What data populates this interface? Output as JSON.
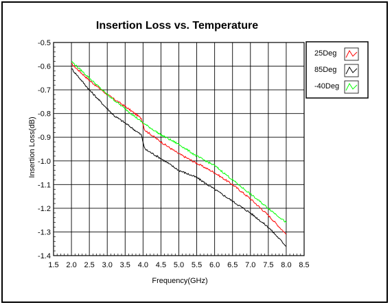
{
  "chart_data": {
    "type": "line",
    "title": "Insertion Loss vs. Temperature",
    "xlabel": "Frequency(GHz)",
    "ylabel": "Insertion Loss(dB)",
    "xlim": [
      1.5,
      8.5
    ],
    "ylim": [
      -1.4,
      -0.5
    ],
    "xticks": [
      "1.5",
      "2.0",
      "2.5",
      "3.0",
      "3.5",
      "4.0",
      "4.5",
      "5.0",
      "5.5",
      "6.0",
      "6.5",
      "7.0",
      "7.5",
      "8.0",
      "8.5"
    ],
    "yticks": [
      "-0.5",
      "-0.6",
      "-0.7",
      "-0.8",
      "-0.9",
      "-1.0",
      "-1.1",
      "-1.2",
      "-1.3",
      "-1.4"
    ],
    "grid": true,
    "legend_position": "top-right",
    "series": [
      {
        "name": "25Deg",
        "color": "#ff0000",
        "x": [
          2.0,
          2.5,
          3.0,
          3.5,
          3.95,
          4.05,
          4.5,
          5.0,
          5.5,
          6.0,
          6.5,
          7.0,
          7.5,
          8.0
        ],
        "y": [
          -0.59,
          -0.66,
          -0.72,
          -0.77,
          -0.82,
          -0.87,
          -0.92,
          -0.97,
          -1.01,
          -1.05,
          -1.1,
          -1.16,
          -1.23,
          -1.31
        ]
      },
      {
        "name": "85Deg",
        "color": "#000000",
        "x": [
          2.0,
          2.5,
          3.0,
          3.2,
          3.5,
          3.95,
          4.05,
          4.5,
          5.0,
          5.5,
          6.0,
          6.5,
          7.0,
          7.5,
          8.0
        ],
        "y": [
          -0.61,
          -0.7,
          -0.78,
          -0.81,
          -0.84,
          -0.89,
          -0.95,
          -0.99,
          -1.04,
          -1.07,
          -1.12,
          -1.17,
          -1.22,
          -1.28,
          -1.36
        ]
      },
      {
        "name": "-40Deg",
        "color": "#00ff00",
        "x": [
          2.0,
          2.5,
          3.0,
          3.5,
          4.0,
          4.5,
          5.0,
          5.5,
          6.0,
          6.5,
          7.0,
          7.5,
          8.0
        ],
        "y": [
          -0.58,
          -0.65,
          -0.72,
          -0.78,
          -0.84,
          -0.89,
          -0.93,
          -0.98,
          -1.02,
          -1.08,
          -1.14,
          -1.2,
          -1.26
        ]
      }
    ]
  }
}
